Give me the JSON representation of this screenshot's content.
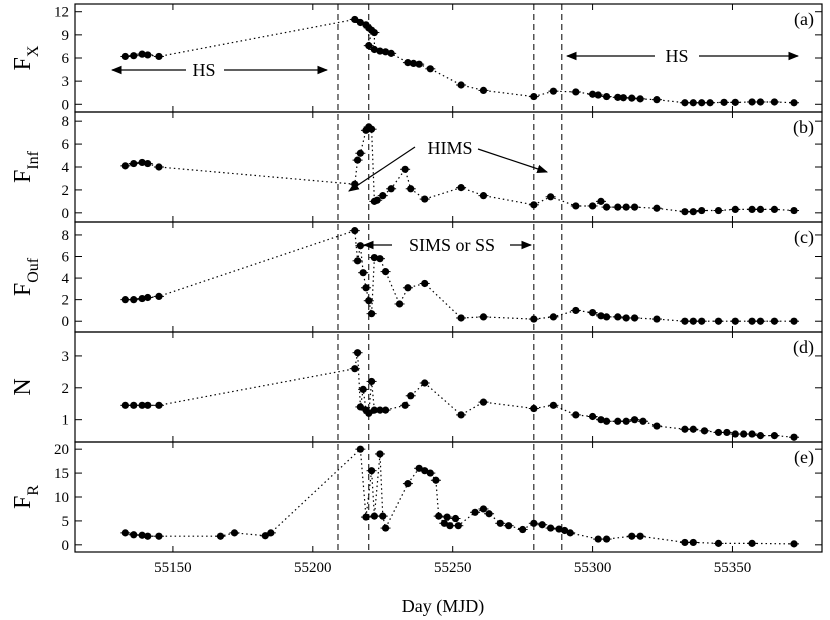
{
  "chart_data": {
    "type": "scatter",
    "xlabel": "Day (MJD)",
    "xlim": [
      55115,
      55382
    ],
    "xticks": [
      55150,
      55200,
      55250,
      55300,
      55350
    ],
    "vlines": [
      55209,
      55220,
      55279,
      55289
    ],
    "panels": [
      {
        "tag": "(a)",
        "ylabel_main": "F",
        "ylabel_sub": "X",
        "ylim": [
          -1,
          13
        ],
        "yticks": [
          0,
          3,
          6,
          9,
          12
        ],
        "points": [
          [
            55133,
            6.2
          ],
          [
            55136,
            6.3
          ],
          [
            55139,
            6.5
          ],
          [
            55141,
            6.4
          ],
          [
            55145,
            6.2
          ],
          [
            55215,
            11.0
          ],
          [
            55217,
            10.6
          ],
          [
            55219,
            10.3
          ],
          [
            55220,
            9.9
          ],
          [
            55221,
            9.6
          ],
          [
            55222,
            9.3
          ],
          [
            55220,
            7.6
          ],
          [
            55222,
            7.1
          ],
          [
            55224,
            6.9
          ],
          [
            55226,
            6.8
          ],
          [
            55228,
            6.6
          ],
          [
            55234,
            5.4
          ],
          [
            55236,
            5.3
          ],
          [
            55238,
            5.2
          ],
          [
            55242,
            4.6
          ],
          [
            55253,
            2.5
          ],
          [
            55261,
            1.8
          ],
          [
            55279,
            1.0
          ],
          [
            55286,
            1.7
          ],
          [
            55294,
            1.6
          ],
          [
            55300,
            1.3
          ],
          [
            55302,
            1.2
          ],
          [
            55305,
            1.0
          ],
          [
            55309,
            0.9
          ],
          [
            55311,
            0.85
          ],
          [
            55314,
            0.8
          ],
          [
            55317,
            0.7
          ],
          [
            55323,
            0.6
          ],
          [
            55333,
            0.2
          ],
          [
            55336,
            0.2
          ],
          [
            55339,
            0.2
          ],
          [
            55342,
            0.2
          ],
          [
            55347,
            0.25
          ],
          [
            55351,
            0.25
          ],
          [
            55357,
            0.3
          ],
          [
            55360,
            0.3
          ],
          [
            55365,
            0.3
          ],
          [
            55372,
            0.2
          ]
        ]
      },
      {
        "tag": "(b)",
        "ylabel_main": "F",
        "ylabel_sub": "Inf",
        "ylim": [
          -0.8,
          8.8
        ],
        "yticks": [
          0,
          2,
          4,
          6,
          8
        ],
        "points": [
          [
            55133,
            4.1
          ],
          [
            55136,
            4.3
          ],
          [
            55139,
            4.4
          ],
          [
            55141,
            4.3
          ],
          [
            55145,
            4.0
          ],
          [
            55215,
            2.5
          ],
          [
            55216,
            4.6
          ],
          [
            55217,
            5.2
          ],
          [
            55219,
            7.2
          ],
          [
            55220,
            7.5
          ],
          [
            55221,
            7.3
          ],
          [
            55222,
            1.0
          ],
          [
            55223,
            1.1
          ],
          [
            55225,
            1.5
          ],
          [
            55228,
            2.1
          ],
          [
            55233,
            3.8
          ],
          [
            55235,
            2.1
          ],
          [
            55240,
            1.2
          ],
          [
            55253,
            2.2
          ],
          [
            55261,
            1.5
          ],
          [
            55279,
            0.7
          ],
          [
            55285,
            1.4
          ],
          [
            55294,
            0.6
          ],
          [
            55300,
            0.6
          ],
          [
            55303,
            1.0
          ],
          [
            55305,
            0.5
          ],
          [
            55309,
            0.5
          ],
          [
            55312,
            0.5
          ],
          [
            55315,
            0.5
          ],
          [
            55323,
            0.4
          ],
          [
            55333,
            0.1
          ],
          [
            55336,
            0.1
          ],
          [
            55339,
            0.2
          ],
          [
            55345,
            0.2
          ],
          [
            55351,
            0.3
          ],
          [
            55357,
            0.3
          ],
          [
            55360,
            0.3
          ],
          [
            55365,
            0.3
          ],
          [
            55372,
            0.2
          ]
        ]
      },
      {
        "tag": "(c)",
        "ylabel_main": "F",
        "ylabel_sub": "Ouf",
        "ylim": [
          -1,
          9.2
        ],
        "yticks": [
          0,
          2,
          4,
          6,
          8
        ],
        "points": [
          [
            55133,
            2.0
          ],
          [
            55136,
            2.0
          ],
          [
            55139,
            2.1
          ],
          [
            55141,
            2.2
          ],
          [
            55145,
            2.3
          ],
          [
            55215,
            8.4
          ],
          [
            55216,
            5.6
          ],
          [
            55217,
            7.0
          ],
          [
            55218,
            4.5
          ],
          [
            55219,
            3.1
          ],
          [
            55220,
            1.9
          ],
          [
            55221,
            0.7
          ],
          [
            55222,
            5.9
          ],
          [
            55224,
            5.8
          ],
          [
            55226,
            4.6
          ],
          [
            55231,
            1.6
          ],
          [
            55234,
            3.1
          ],
          [
            55240,
            3.5
          ],
          [
            55253,
            0.3
          ],
          [
            55261,
            0.4
          ],
          [
            55279,
            0.2
          ],
          [
            55286,
            0.4
          ],
          [
            55294,
            1.0
          ],
          [
            55300,
            0.8
          ],
          [
            55303,
            0.5
          ],
          [
            55305,
            0.4
          ],
          [
            55309,
            0.4
          ],
          [
            55312,
            0.3
          ],
          [
            55315,
            0.3
          ],
          [
            55323,
            0.2
          ],
          [
            55333,
            0.0
          ],
          [
            55336,
            0.0
          ],
          [
            55339,
            0.0
          ],
          [
            55345,
            0.0
          ],
          [
            55351,
            0.0
          ],
          [
            55357,
            0.0
          ],
          [
            55360,
            0.0
          ],
          [
            55365,
            0.0
          ],
          [
            55372,
            0.0
          ]
        ]
      },
      {
        "tag": "(d)",
        "ylabel_main": "N",
        "ylabel_sub": "",
        "ylim": [
          0.3,
          3.75
        ],
        "yticks": [
          1,
          2,
          3
        ],
        "points": [
          [
            55133,
            1.45
          ],
          [
            55136,
            1.45
          ],
          [
            55139,
            1.45
          ],
          [
            55141,
            1.45
          ],
          [
            55145,
            1.45
          ],
          [
            55215,
            2.6
          ],
          [
            55216,
            3.1
          ],
          [
            55217,
            1.4
          ],
          [
            55218,
            1.95
          ],
          [
            55219,
            1.3
          ],
          [
            55220,
            1.2
          ],
          [
            55221,
            2.2
          ],
          [
            55222,
            1.3
          ],
          [
            55224,
            1.3
          ],
          [
            55226,
            1.3
          ],
          [
            55233,
            1.45
          ],
          [
            55235,
            1.75
          ],
          [
            55240,
            2.15
          ],
          [
            55253,
            1.15
          ],
          [
            55261,
            1.55
          ],
          [
            55279,
            1.35
          ],
          [
            55286,
            1.45
          ],
          [
            55294,
            1.15
          ],
          [
            55300,
            1.1
          ],
          [
            55303,
            1.0
          ],
          [
            55305,
            0.95
          ],
          [
            55309,
            0.95
          ],
          [
            55312,
            0.95
          ],
          [
            55315,
            1.0
          ],
          [
            55318,
            0.95
          ],
          [
            55323,
            0.8
          ],
          [
            55333,
            0.7
          ],
          [
            55336,
            0.7
          ],
          [
            55340,
            0.65
          ],
          [
            55345,
            0.6
          ],
          [
            55348,
            0.6
          ],
          [
            55351,
            0.55
          ],
          [
            55354,
            0.55
          ],
          [
            55357,
            0.55
          ],
          [
            55360,
            0.5
          ],
          [
            55365,
            0.5
          ],
          [
            55372,
            0.45
          ]
        ]
      },
      {
        "tag": "(e)",
        "ylabel_main": "F",
        "ylabel_sub": "R",
        "ylim": [
          -1.5,
          21.5
        ],
        "yticks": [
          0,
          5,
          10,
          15,
          20
        ],
        "points": [
          [
            55133,
            2.5
          ],
          [
            55136,
            2.1
          ],
          [
            55139,
            2.0
          ],
          [
            55141,
            1.8
          ],
          [
            55145,
            1.8
          ],
          [
            55167,
            1.8
          ],
          [
            55172,
            2.5
          ],
          [
            55183,
            1.9
          ],
          [
            55185,
            2.5
          ],
          [
            55217,
            20.0
          ],
          [
            55219,
            5.8
          ],
          [
            55221,
            15.5
          ],
          [
            55222,
            6.0
          ],
          [
            55224,
            19.0
          ],
          [
            55225,
            6.0
          ],
          [
            55226,
            3.5
          ],
          [
            55234,
            12.8
          ],
          [
            55238,
            16.0
          ],
          [
            55240,
            15.5
          ],
          [
            55242,
            15.0
          ],
          [
            55244,
            13.5
          ],
          [
            55245,
            6.0
          ],
          [
            55247,
            4.5
          ],
          [
            55248,
            5.8
          ],
          [
            55249,
            4.0
          ],
          [
            55251,
            5.5
          ],
          [
            55252,
            4.0
          ],
          [
            55258,
            6.8
          ],
          [
            55261,
            7.5
          ],
          [
            55263,
            6.5
          ],
          [
            55267,
            4.5
          ],
          [
            55270,
            4.0
          ],
          [
            55275,
            3.2
          ],
          [
            55279,
            4.5
          ],
          [
            55282,
            4.2
          ],
          [
            55285,
            3.5
          ],
          [
            55288,
            3.3
          ],
          [
            55290,
            3.0
          ],
          [
            55292,
            2.5
          ],
          [
            55302,
            1.2
          ],
          [
            55305,
            1.2
          ],
          [
            55314,
            1.8
          ],
          [
            55317,
            1.8
          ],
          [
            55333,
            0.5
          ],
          [
            55336,
            0.5
          ],
          [
            55345,
            0.3
          ],
          [
            55357,
            0.3
          ],
          [
            55372,
            0.2
          ]
        ]
      }
    ],
    "annotations": {
      "hs_left": "HS",
      "hs_right": "HS",
      "hims": "HIMS",
      "sims": "SIMS or SS"
    }
  }
}
